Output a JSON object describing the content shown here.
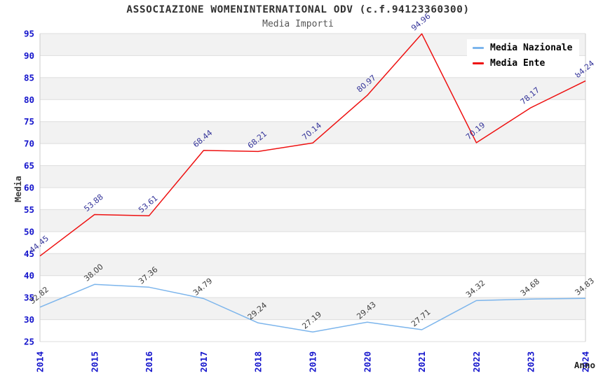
{
  "header": {
    "title": "ASSOCIAZIONE WOMENINTERNATIONAL ODV (c.f.94123360300)",
    "subtitle": "Media Importi"
  },
  "chart_data": {
    "type": "line",
    "title": "ASSOCIAZIONE WOMENINTERNATIONAL ODV (c.f.94123360300)",
    "subtitle": "Media Importi",
    "xlabel": "Anno",
    "ylabel": "Media",
    "categories": [
      "2014",
      "2015",
      "2016",
      "2017",
      "2018",
      "2019",
      "2020",
      "2021",
      "2022",
      "2023",
      "2024"
    ],
    "series": [
      {
        "name": "Media Nazionale",
        "color": "#7cb5ec",
        "label_color": "#3d3d3d",
        "values": [
          32.82,
          38.0,
          37.36,
          34.79,
          29.24,
          27.19,
          29.43,
          27.71,
          34.32,
          34.68,
          34.83
        ]
      },
      {
        "name": "Media Ente",
        "color": "#ee1111",
        "label_color": "#333399",
        "values": [
          44.45,
          53.88,
          53.61,
          68.44,
          68.21,
          70.14,
          80.97,
          94.96,
          70.19,
          78.17,
          84.24
        ]
      }
    ],
    "ylim": [
      25,
      95
    ],
    "ytick_step": 5,
    "yticks": [
      25,
      30,
      35,
      40,
      45,
      50,
      55,
      60,
      65,
      70,
      75,
      80,
      85,
      90,
      95
    ],
    "grid": true,
    "legend_position": "top-right",
    "band_colors": [
      "#ffffff",
      "#f2f2f2"
    ],
    "gridline_color": "#dddddd",
    "axis_border_color": "#cccccc",
    "tick_label_color": "#1414cc",
    "axis_title_color": "#3c3c3c"
  }
}
